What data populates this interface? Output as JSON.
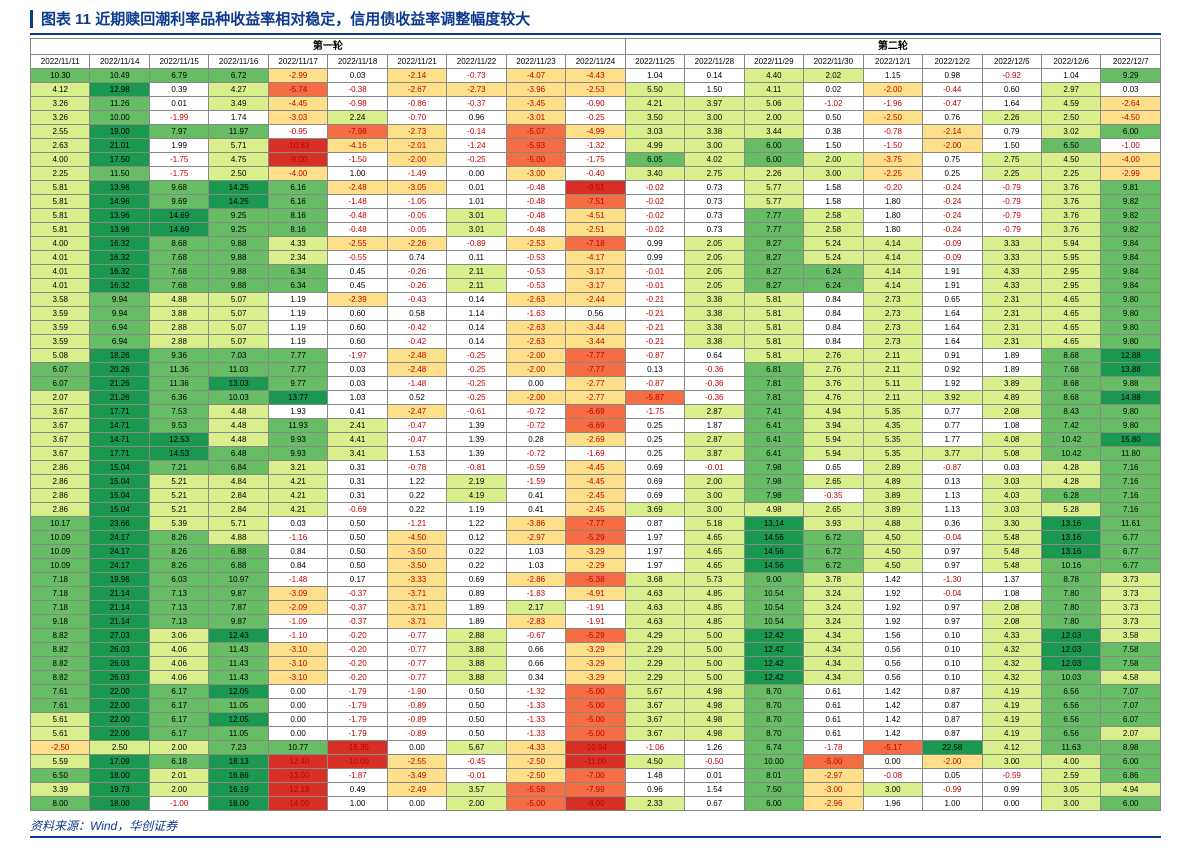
{
  "title": "图表 11  近期赎回潮利率品种收益率相对稳定，信用债收益率调整幅度较大",
  "source": "资料来源：Wind，华创证券",
  "groups": [
    "第一轮",
    "第二轮"
  ],
  "dates": [
    "2022/11/11",
    "2022/11/14",
    "2022/11/15",
    "2022/11/16",
    "2022/11/17",
    "2022/11/18",
    "2022/11/21",
    "2022/11/22",
    "2022/11/23",
    "2022/11/24",
    "2022/11/25",
    "2022/11/28",
    "2022/11/29",
    "2022/11/30",
    "2022/12/1",
    "2022/12/2",
    "2022/12/5",
    "2022/12/6",
    "2022/12/7"
  ],
  "colors": {
    "pos3": "#1a9850",
    "pos2": "#66bd63",
    "pos1": "#d9ef8b",
    "neu": "#ffffff",
    "neg1": "#fee08b",
    "neg2": "#f46d43",
    "neg3": "#d73027",
    "posText": "#000",
    "negText": "#c00000",
    "box": "#d2691e"
  },
  "rows": [
    [
      10.3,
      10.49,
      6.79,
      6.72,
      -2.99,
      0.03,
      -2.14,
      -0.73,
      -4.07,
      -4.43,
      1.04,
      0.14,
      4.4,
      2.02,
      1.15,
      0.98,
      -0.92,
      1.04,
      9.29
    ],
    [
      4.12,
      12.98,
      0.39,
      4.27,
      -5.74,
      -0.38,
      -2.67,
      -2.73,
      -3.96,
      -2.53,
      5.5,
      1.5,
      4.11,
      0.02,
      -2.0,
      -0.44,
      0.6,
      2.97,
      0.03
    ],
    [
      3.26,
      11.26,
      0.01,
      3.49,
      -4.45,
      -0.98,
      -0.86,
      -0.37,
      -3.45,
      -0.9,
      4.21,
      3.97,
      5.06,
      -1.02,
      -1.96,
      -0.47,
      1.64,
      4.59,
      -2.64
    ],
    [
      3.26,
      10.0,
      -1.99,
      1.74,
      -3.03,
      2.24,
      -0.7,
      0.96,
      -3.01,
      -0.25,
      3.5,
      3.0,
      2.0,
      0.5,
      -2.5,
      0.76,
      2.26,
      2.5,
      -4.5
    ],
    [
      2.55,
      19.0,
      7.97,
      11.97,
      -0.95,
      -7.98,
      -2.73,
      -0.14,
      -5.07,
      -4.99,
      3.03,
      3.38,
      3.44,
      0.38,
      -0.78,
      -2.14,
      0.79,
      3.02,
      6.0
    ],
    [
      2.63,
      21.01,
      1.99,
      5.71,
      -10.83,
      -4.16,
      -2.01,
      -1.24,
      -5.93,
      -1.32,
      4.99,
      3.0,
      6.0,
      1.5,
      -1.5,
      -2.0,
      1.5,
      6.5,
      -1.0
    ],
    [
      4.0,
      17.5,
      -1.75,
      4.75,
      -8.0,
      -1.5,
      -2.0,
      -0.25,
      -5.0,
      -1.75,
      6.05,
      4.02,
      6.0,
      2.0,
      -3.75,
      0.75,
      2.75,
      4.5,
      -4.0
    ],
    [
      2.25,
      11.5,
      -1.75,
      2.5,
      -4.0,
      1.0,
      -1.49,
      0.0,
      -3.0,
      -0.4,
      3.4,
      2.75,
      2.26,
      3.0,
      -2.25,
      0.25,
      2.25,
      2.25,
      -2.99
    ],
    [
      5.81,
      13.96,
      9.68,
      14.25,
      6.16,
      -2.48,
      -3.05,
      0.01,
      -0.48,
      -9.51,
      -0.02,
      0.73,
      5.77,
      1.58,
      -0.2,
      -0.24,
      -0.79,
      3.76,
      9.81
    ],
    [
      5.81,
      14.96,
      9.69,
      14.25,
      6.16,
      -1.48,
      -1.05,
      1.01,
      -0.48,
      -7.51,
      -0.02,
      0.73,
      5.77,
      1.58,
      1.8,
      -0.24,
      -0.79,
      3.76,
      9.82
    ],
    [
      5.81,
      13.96,
      14.69,
      9.25,
      8.16,
      -0.48,
      -0.05,
      3.01,
      -0.48,
      -4.51,
      -0.02,
      0.73,
      7.77,
      2.58,
      1.8,
      -0.24,
      -0.79,
      3.76,
      9.82
    ],
    [
      5.81,
      13.96,
      14.69,
      9.25,
      8.16,
      -0.48,
      -0.05,
      3.01,
      -0.48,
      -2.51,
      -0.02,
      0.73,
      7.77,
      2.58,
      1.8,
      -0.24,
      -0.79,
      3.76,
      9.82
    ],
    [
      4.0,
      16.32,
      8.68,
      9.88,
      4.33,
      -2.55,
      -2.26,
      -0.89,
      -2.53,
      -7.18,
      0.99,
      2.05,
      8.27,
      5.24,
      4.14,
      -0.09,
      3.33,
      5.94,
      9.84
    ],
    [
      4.01,
      16.32,
      7.68,
      9.88,
      2.34,
      -0.55,
      0.74,
      0.11,
      -0.53,
      -4.17,
      0.99,
      2.05,
      8.27,
      5.24,
      4.14,
      -0.09,
      3.33,
      5.95,
      9.84
    ],
    [
      4.01,
      16.32,
      7.68,
      9.88,
      6.34,
      0.45,
      -0.26,
      2.11,
      -0.53,
      -3.17,
      -0.01,
      2.05,
      8.27,
      6.24,
      4.14,
      1.91,
      4.33,
      2.95,
      9.84
    ],
    [
      4.01,
      16.32,
      7.68,
      9.88,
      6.34,
      0.45,
      -0.26,
      2.11,
      -0.53,
      -3.17,
      -0.01,
      2.05,
      8.27,
      6.24,
      4.14,
      1.91,
      4.33,
      2.95,
      9.84
    ],
    [
      3.58,
      9.94,
      4.88,
      5.07,
      1.19,
      -2.39,
      -0.43,
      0.14,
      -2.63,
      -2.44,
      -0.21,
      3.38,
      5.81,
      0.84,
      2.73,
      0.65,
      2.31,
      4.65,
      9.8
    ],
    [
      3.59,
      9.94,
      3.88,
      5.07,
      1.19,
      0.6,
      0.58,
      1.14,
      -1.63,
      0.56,
      -0.21,
      3.38,
      5.81,
      0.84,
      2.73,
      1.64,
      2.31,
      4.65,
      9.8
    ],
    [
      3.59,
      6.94,
      2.88,
      5.07,
      1.19,
      0.6,
      -0.42,
      0.14,
      -2.63,
      -3.44,
      -0.21,
      3.38,
      5.81,
      0.84,
      2.73,
      1.64,
      2.31,
      4.65,
      9.8
    ],
    [
      3.59,
      6.94,
      2.88,
      5.07,
      1.19,
      0.6,
      -0.42,
      0.14,
      -2.63,
      -3.44,
      -0.21,
      3.38,
      5.81,
      0.84,
      2.73,
      1.64,
      2.31,
      4.65,
      9.8
    ],
    [
      5.08,
      18.26,
      9.36,
      7.03,
      7.77,
      -1.97,
      -2.48,
      -0.25,
      -2.0,
      -7.77,
      -0.87,
      0.64,
      5.81,
      2.76,
      2.11,
      0.91,
      1.89,
      8.68,
      12.88
    ],
    [
      6.07,
      20.26,
      11.36,
      11.03,
      7.77,
      0.03,
      -2.48,
      -0.25,
      -2.0,
      -7.77,
      0.13,
      -0.36,
      6.81,
      2.76,
      2.11,
      0.92,
      1.89,
      7.68,
      13.88
    ],
    [
      6.07,
      21.26,
      11.36,
      13.03,
      9.77,
      0.03,
      -1.48,
      -0.25,
      0.0,
      -2.77,
      -0.87,
      -0.36,
      7.81,
      3.76,
      5.11,
      1.92,
      3.89,
      8.68,
      9.88
    ],
    [
      2.07,
      21.26,
      6.36,
      10.03,
      13.77,
      1.03,
      0.52,
      -0.25,
      -2.0,
      -2.77,
      -5.87,
      -0.36,
      7.81,
      4.76,
      2.11,
      3.92,
      4.89,
      8.68,
      14.88
    ],
    [
      3.67,
      17.71,
      7.53,
      4.48,
      1.93,
      0.41,
      -2.47,
      -0.61,
      -0.72,
      -6.69,
      -1.75,
      2.87,
      7.41,
      4.94,
      5.35,
      0.77,
      2.08,
      8.43,
      9.8
    ],
    [
      3.67,
      14.71,
      9.53,
      4.48,
      11.93,
      2.41,
      -0.47,
      1.39,
      -0.72,
      -6.69,
      0.25,
      1.87,
      6.41,
      3.94,
      4.35,
      0.77,
      1.08,
      7.42,
      9.8
    ],
    [
      3.67,
      14.71,
      12.53,
      4.48,
      9.93,
      4.41,
      -0.47,
      1.39,
      0.28,
      -2.69,
      0.25,
      2.87,
      6.41,
      5.94,
      5.35,
      1.77,
      4.08,
      10.42,
      15.8
    ],
    [
      3.67,
      17.71,
      14.53,
      6.48,
      9.93,
      3.41,
      1.53,
      1.39,
      -0.72,
      -1.69,
      0.25,
      3.87,
      6.41,
      5.94,
      5.35,
      3.77,
      5.08,
      10.42,
      11.8
    ],
    [
      2.86,
      15.04,
      7.21,
      6.84,
      3.21,
      0.31,
      -0.78,
      -0.81,
      -0.59,
      -4.45,
      0.69,
      -0.01,
      7.98,
      0.65,
      2.89,
      -0.87,
      0.03,
      4.28,
      7.16
    ],
    [
      2.86,
      15.04,
      5.21,
      4.84,
      4.21,
      0.31,
      1.22,
      2.19,
      -1.59,
      -4.45,
      0.69,
      2.0,
      7.98,
      2.65,
      4.89,
      0.13,
      3.03,
      4.28,
      7.16
    ],
    [
      2.86,
      15.04,
      5.21,
      2.84,
      4.21,
      0.31,
      0.22,
      4.19,
      0.41,
      -2.45,
      0.69,
      3.0,
      7.98,
      -0.35,
      3.89,
      1.13,
      4.03,
      6.28,
      7.16
    ],
    [
      2.86,
      15.04,
      5.21,
      2.84,
      4.21,
      -0.69,
      0.22,
      1.19,
      0.41,
      -2.45,
      3.69,
      3.0,
      4.98,
      2.65,
      3.89,
      1.13,
      3.03,
      5.28,
      7.16
    ],
    [
      10.17,
      23.66,
      5.39,
      5.71,
      0.03,
      0.5,
      -1.21,
      1.22,
      -3.86,
      -7.77,
      0.87,
      5.18,
      13.14,
      3.93,
      4.88,
      0.36,
      3.3,
      13.16,
      11.61
    ],
    [
      10.09,
      24.17,
      8.26,
      4.88,
      -1.16,
      0.5,
      -4.5,
      0.12,
      -2.97,
      -5.29,
      1.97,
      4.65,
      14.56,
      6.72,
      4.5,
      -0.04,
      5.48,
      13.16,
      6.77
    ],
    [
      10.09,
      24.17,
      8.26,
      6.88,
      0.84,
      0.5,
      -3.5,
      0.22,
      1.03,
      -3.29,
      1.97,
      4.65,
      14.56,
      6.72,
      4.5,
      0.97,
      5.48,
      13.16,
      6.77
    ],
    [
      10.09,
      24.17,
      8.26,
      6.88,
      0.84,
      0.5,
      -3.5,
      0.22,
      1.03,
      -2.29,
      1.97,
      4.65,
      14.56,
      6.72,
      4.5,
      0.97,
      5.48,
      10.16,
      6.77
    ],
    [
      7.18,
      19.96,
      6.03,
      10.97,
      -1.48,
      0.17,
      -3.33,
      0.69,
      -2.86,
      -5.38,
      3.68,
      5.73,
      9.0,
      3.78,
      1.42,
      -1.3,
      1.37,
      8.78,
      3.73
    ],
    [
      7.18,
      21.14,
      7.13,
      9.87,
      -3.09,
      -0.37,
      -3.71,
      0.89,
      -1.83,
      -4.91,
      4.63,
      4.85,
      10.54,
      3.24,
      1.92,
      -0.04,
      1.08,
      7.8,
      3.73
    ],
    [
      7.18,
      21.14,
      7.13,
      7.87,
      -2.09,
      -0.37,
      -3.71,
      1.89,
      2.17,
      -1.91,
      4.63,
      4.85,
      10.54,
      3.24,
      1.92,
      0.97,
      2.08,
      7.8,
      3.73
    ],
    [
      9.18,
      21.14,
      7.13,
      9.87,
      -1.09,
      -0.37,
      -3.71,
      1.89,
      -2.83,
      -1.91,
      4.63,
      4.85,
      10.54,
      3.24,
      1.92,
      0.97,
      2.08,
      7.8,
      3.73
    ],
    [
      8.82,
      27.03,
      3.06,
      12.43,
      -1.1,
      -0.2,
      -0.77,
      2.88,
      -0.67,
      -5.29,
      4.29,
      5.0,
      12.42,
      4.34,
      1.56,
      0.1,
      4.33,
      12.03,
      3.58
    ],
    [
      8.82,
      26.03,
      4.06,
      11.43,
      -3.1,
      -0.2,
      -0.77,
      3.88,
      0.66,
      -3.29,
      2.29,
      5.0,
      12.42,
      4.34,
      0.56,
      0.1,
      4.32,
      12.03,
      7.58
    ],
    [
      8.82,
      26.03,
      4.06,
      11.43,
      -3.1,
      -0.2,
      -0.77,
      3.88,
      0.66,
      -3.29,
      2.29,
      5.0,
      12.42,
      4.34,
      0.56,
      0.1,
      4.32,
      12.03,
      7.58
    ],
    [
      8.82,
      26.03,
      4.06,
      11.43,
      -3.1,
      -0.2,
      -0.77,
      3.88,
      0.34,
      -3.29,
      2.29,
      5.0,
      12.42,
      4.34,
      0.56,
      0.1,
      4.32,
      10.03,
      4.58
    ],
    [
      7.61,
      22.0,
      6.17,
      12.05,
      0.0,
      -1.79,
      -1.9,
      0.5,
      -1.32,
      -5.0,
      5.67,
      4.98,
      8.7,
      0.61,
      1.42,
      0.87,
      4.19,
      6.56,
      7.07
    ],
    [
      7.61,
      22.0,
      6.17,
      11.05,
      0.0,
      -1.79,
      -0.89,
      0.5,
      -1.33,
      -5.0,
      3.67,
      4.98,
      8.7,
      0.61,
      1.42,
      0.87,
      4.19,
      6.56,
      7.07
    ],
    [
      5.61,
      22.0,
      6.17,
      12.05,
      0.0,
      -1.79,
      -0.89,
      0.5,
      -1.33,
      -5.0,
      3.67,
      4.98,
      8.7,
      0.61,
      1.42,
      0.87,
      4.19,
      6.56,
      6.07
    ],
    [
      5.61,
      22.0,
      6.17,
      11.05,
      0.0,
      -1.79,
      -0.89,
      0.5,
      -1.33,
      -5.0,
      3.67,
      4.98,
      8.7,
      0.61,
      1.42,
      0.87,
      4.19,
      6.56,
      2.07
    ],
    [
      -2.5,
      2.5,
      2.0,
      7.23,
      10.77,
      -16.35,
      0.0,
      5.67,
      -4.33,
      -10.94,
      -1.06,
      1.26,
      6.74,
      -1.78,
      -5.17,
      22.58,
      4.12,
      11.63,
      8.98
    ],
    [
      5.59,
      17.09,
      6.18,
      18.13,
      -12.4,
      -10.0,
      -2.55,
      -0.45,
      -2.5,
      -11.0,
      4.5,
      -0.5,
      10.0,
      -5.0,
      0.0,
      -2.0,
      3.0,
      4.0,
      6.0
    ],
    [
      6.5,
      18.0,
      2.01,
      16.86,
      -13.0,
      -1.87,
      -3.49,
      -0.01,
      -2.5,
      -7.0,
      1.48,
      0.01,
      8.01,
      -2.97,
      -0.08,
      0.05,
      -0.59,
      2.59,
      6.86
    ],
    [
      3.39,
      19.73,
      2.0,
      16.19,
      -12.19,
      0.49,
      -2.49,
      3.57,
      -5.58,
      -7.99,
      0.96,
      1.54,
      7.5,
      -3.0,
      3.0,
      -0.99,
      0.99,
      3.05,
      4.94
    ],
    [
      8.0,
      18.0,
      -1.0,
      18.0,
      -14.0,
      1.0,
      0.0,
      2.0,
      -5.0,
      -8.0,
      2.33,
      0.67,
      6.0,
      -2.96,
      1.96,
      1.0,
      0.0,
      3.0,
      6.0
    ]
  ]
}
